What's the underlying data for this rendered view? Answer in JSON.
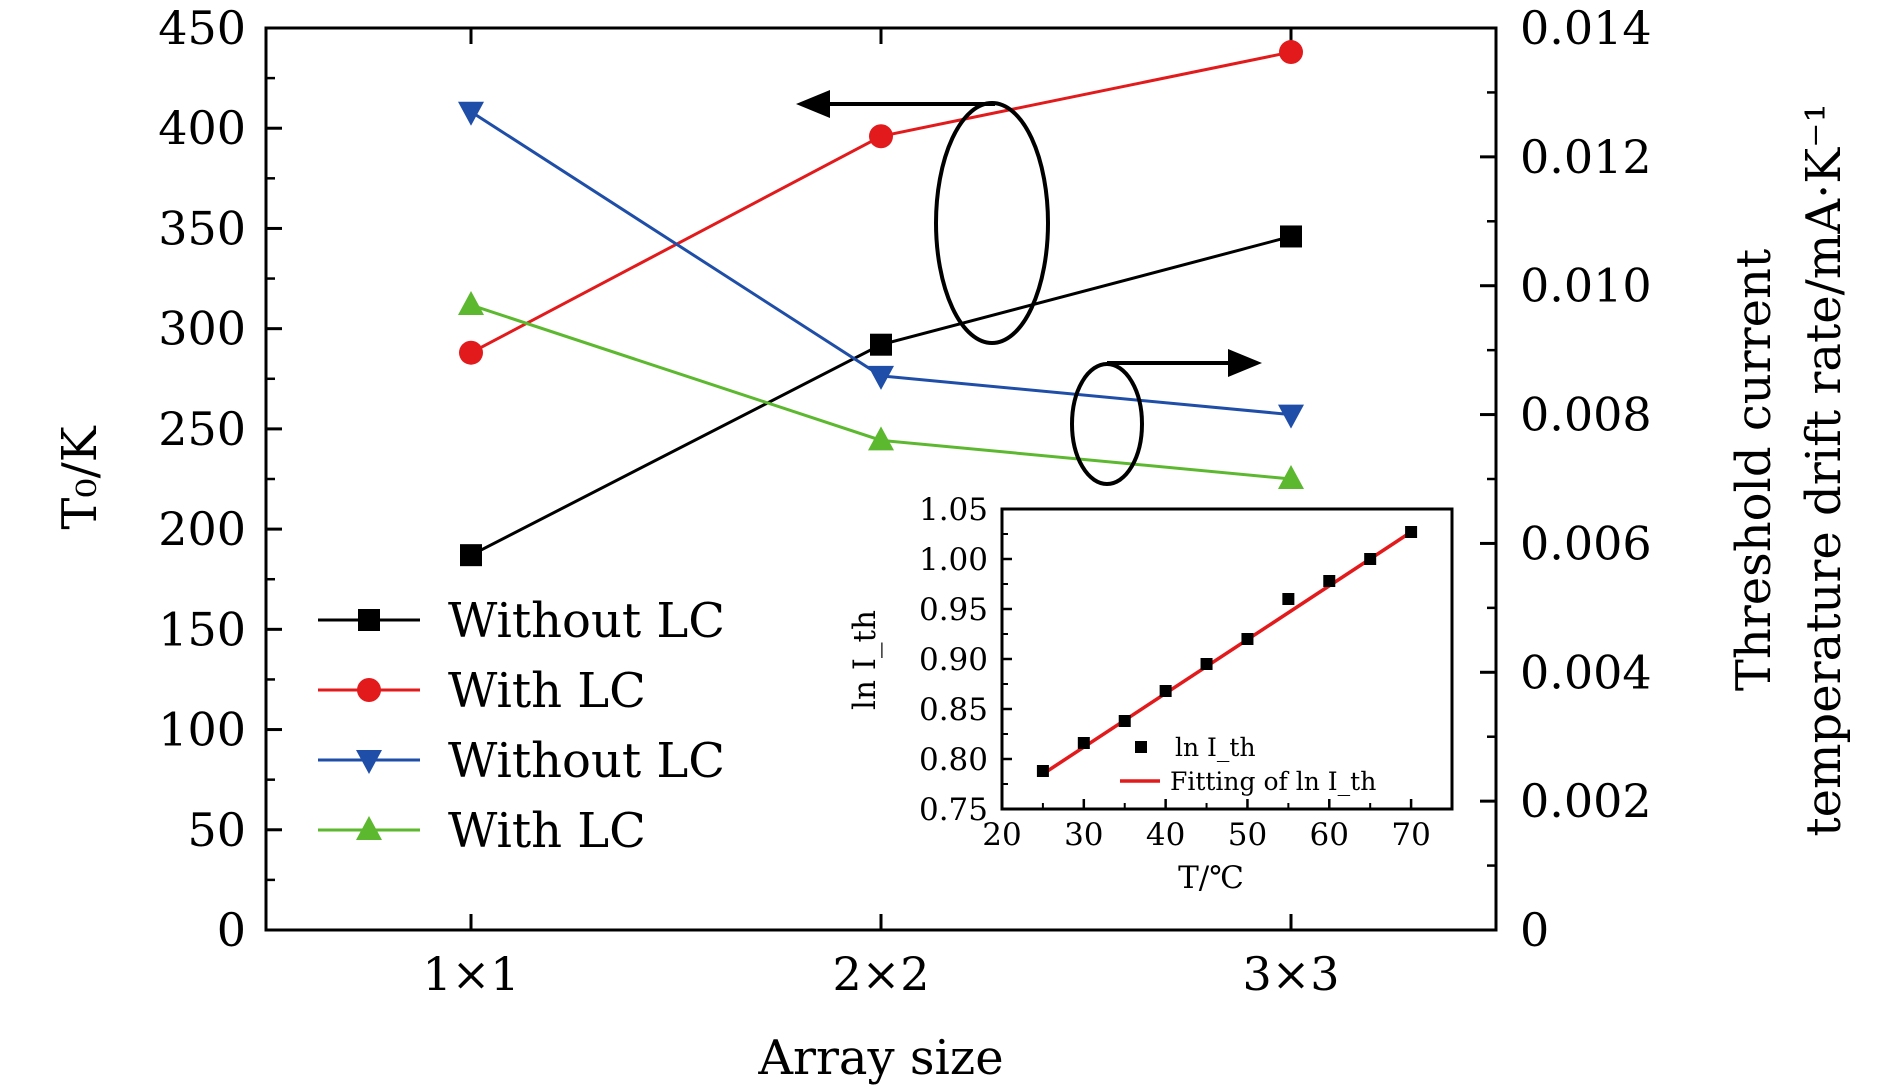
{
  "chart_data": [
    {
      "type": "line",
      "xlabel": "Array size",
      "ylabel_left": "T₀/K",
      "ylabel_right": [
        "Threshold current",
        "temperature drift rate/mA·K⁻¹"
      ],
      "categories": [
        "1×1",
        "2×2",
        "3×3"
      ],
      "ylim_left": [
        0,
        450
      ],
      "ylim_right": [
        0,
        0.014
      ],
      "yticks_left": [
        "0",
        "50",
        "100",
        "150",
        "200",
        "250",
        "300",
        "350",
        "400",
        "450"
      ],
      "yticks_right": [
        "0",
        "0.002",
        "0.004",
        "0.006",
        "0.008",
        "0.010",
        "0.012",
        "0.014"
      ],
      "series": [
        {
          "name": "Without LC",
          "axis": "left",
          "marker": "square",
          "color": "#000000",
          "values": [
            187,
            292,
            346
          ]
        },
        {
          "name": "With LC",
          "axis": "left",
          "marker": "circle",
          "color": "#e31a1c",
          "values": [
            288,
            396,
            438
          ]
        },
        {
          "name": "Without LC",
          "axis": "right",
          "marker": "triangle-down",
          "color": "#1f4ea8",
          "values": [
            0.0127,
            0.0086,
            0.008
          ]
        },
        {
          "name": "With LC",
          "axis": "right",
          "marker": "triangle-up",
          "color": "#5cb82e",
          "values": [
            0.0097,
            0.0076,
            0.007
          ]
        }
      ],
      "legend_position": "lower-left",
      "annotations": [
        "left arrow: red/black series on left axis",
        "right arrow: blue/green series on right axis"
      ]
    },
    {
      "type": "scatter",
      "role": "inset",
      "xlabel": "T/℃",
      "ylabel": "ln I_th",
      "xlim": [
        20,
        75
      ],
      "ylim": [
        0.75,
        1.05
      ],
      "xticks": [
        "20",
        "30",
        "40",
        "50",
        "60",
        "70"
      ],
      "yticks": [
        "0.75",
        "0.80",
        "0.85",
        "0.90",
        "0.95",
        "1.00",
        "1.05"
      ],
      "x": [
        25,
        30,
        35,
        40,
        45,
        50,
        55,
        60,
        65,
        70
      ],
      "y": [
        0.788,
        0.816,
        0.838,
        0.868,
        0.895,
        0.92,
        0.96,
        0.978,
        1.0,
        1.027
      ],
      "fit": {
        "x": [
          25,
          70
        ],
        "y": [
          0.785,
          1.027
        ]
      },
      "legend": [
        "ln I_th",
        "Fitting of ln I_th"
      ],
      "legend_position": "lower-right"
    }
  ]
}
